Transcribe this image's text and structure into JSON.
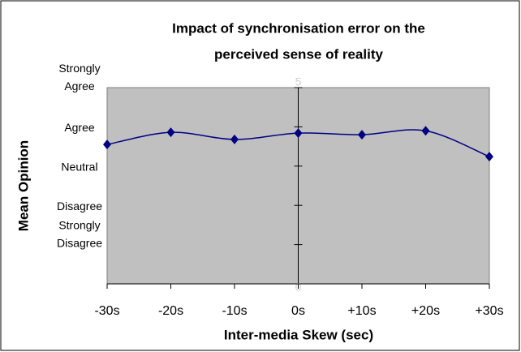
{
  "chart_data": {
    "type": "line",
    "title": [
      "Impact of synchronisation error on the",
      "perceived sense of reality"
    ],
    "x_label": "Inter-media Skew (sec)",
    "y_label": "Mean Opinion",
    "categories": [
      "-30s",
      "-20s",
      "-10s",
      "0s",
      "+10s",
      "+20s",
      "+30s"
    ],
    "series": [
      {
        "name": "Mean Opinion",
        "color": "#000080",
        "values": [
          3.55,
          3.86,
          3.68,
          3.84,
          3.8,
          3.9,
          3.24
        ]
      }
    ],
    "ylim": [
      0,
      5
    ],
    "yticks": [
      0,
      1,
      2,
      3,
      4,
      5
    ],
    "opinion_labels": [
      {
        "value": 5,
        "label": "Strongly Agree"
      },
      {
        "value": 4,
        "label": "Agree"
      },
      {
        "value": 3,
        "label": "Neutral"
      },
      {
        "value": 2,
        "label": "Disagree"
      },
      {
        "value": 1,
        "label": "Strongly Disagree"
      }
    ],
    "smooth": true,
    "plot_background": "#c0c0c0"
  }
}
